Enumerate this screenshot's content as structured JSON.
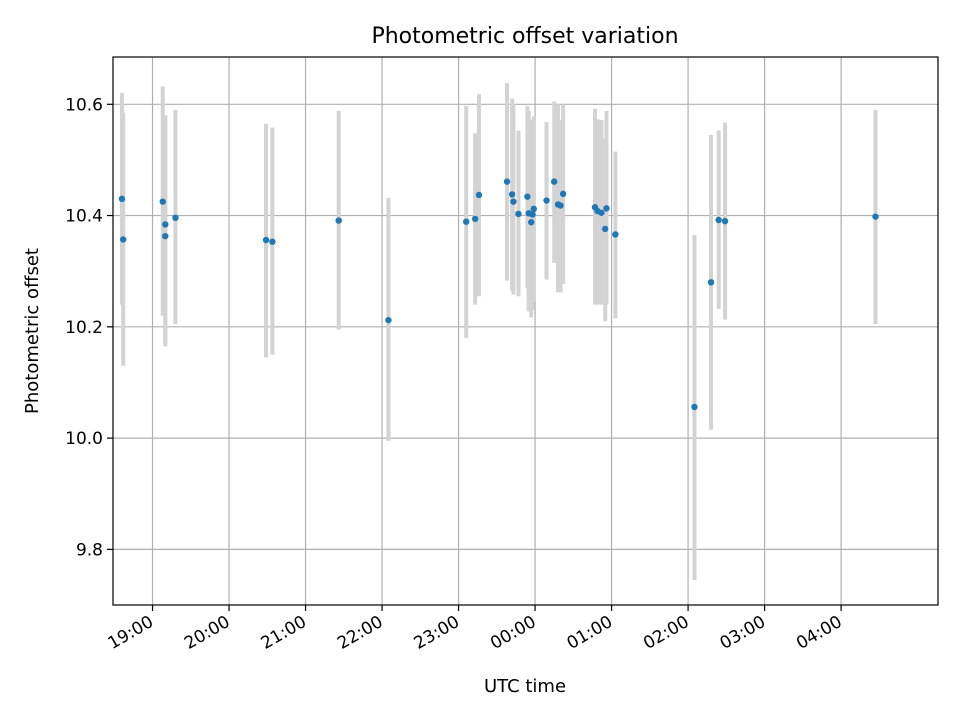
{
  "chart_data": {
    "type": "scatter",
    "title": "Photometric offset variation",
    "xlabel": "UTC time",
    "ylabel": "Photometric offset",
    "grid": true,
    "x_start_label": "18:00",
    "xlim": [
      "18:29",
      "05:16"
    ],
    "ylim": [
      9.7,
      10.685
    ],
    "x_ticks": [
      "19:00",
      "20:00",
      "21:00",
      "22:00",
      "23:00",
      "00:00",
      "01:00",
      "02:00",
      "03:00",
      "04:00"
    ],
    "y_ticks": [
      "9.8",
      "10.0",
      "10.2",
      "10.4",
      "10.6"
    ],
    "y_tick_values": [
      9.8,
      10.0,
      10.2,
      10.4,
      10.6
    ],
    "colors": {
      "point": "#1f77b4",
      "error_bar": "#d3d3d3"
    },
    "points": [
      {
        "x": "18:36",
        "y": 10.43,
        "err_low": 10.24,
        "err_high": 10.62
      },
      {
        "x": "18:37",
        "y": 10.357,
        "err_low": 10.13,
        "err_high": 10.585
      },
      {
        "x": "19:08",
        "y": 10.425,
        "err_low": 10.22,
        "err_high": 10.632
      },
      {
        "x": "19:10",
        "y": 10.384,
        "err_low": 10.165,
        "err_high": 10.58
      },
      {
        "x": "19:10",
        "y": 10.363,
        "err_low": 10.165,
        "err_high": 10.58
      },
      {
        "x": "19:18",
        "y": 10.396,
        "err_low": 10.205,
        "err_high": 10.59
      },
      {
        "x": "20:29",
        "y": 10.356,
        "err_low": 10.145,
        "err_high": 10.565
      },
      {
        "x": "20:34",
        "y": 10.353,
        "err_low": 10.15,
        "err_high": 10.558
      },
      {
        "x": "21:26",
        "y": 10.391,
        "err_low": 10.195,
        "err_high": 10.588
      },
      {
        "x": "22:05",
        "y": 10.212,
        "err_low": 9.995,
        "err_high": 10.432
      },
      {
        "x": "23:06",
        "y": 10.389,
        "err_low": 10.18,
        "err_high": 10.597
      },
      {
        "x": "23:13",
        "y": 10.394,
        "err_low": 10.24,
        "err_high": 10.548
      },
      {
        "x": "23:16",
        "y": 10.437,
        "err_low": 10.255,
        "err_high": 10.618
      },
      {
        "x": "23:38",
        "y": 10.461,
        "err_low": 10.283,
        "err_high": 10.638
      },
      {
        "x": "23:42",
        "y": 10.438,
        "err_low": 10.265,
        "err_high": 10.61
      },
      {
        "x": "23:43",
        "y": 10.425,
        "err_low": 10.258,
        "err_high": 10.6
      },
      {
        "x": "23:47",
        "y": 10.403,
        "err_low": 10.255,
        "err_high": 10.553
      },
      {
        "x": "23:54",
        "y": 10.434,
        "err_low": 10.27,
        "err_high": 10.597
      },
      {
        "x": "23:55",
        "y": 10.404,
        "err_low": 10.228,
        "err_high": 10.588
      },
      {
        "x": "23:57",
        "y": 10.388,
        "err_low": 10.217,
        "err_high": 10.56
      },
      {
        "x": "23:58",
        "y": 10.402,
        "err_low": 10.23,
        "err_high": 10.572
      },
      {
        "x": "23:59",
        "y": 10.412,
        "err_low": 10.245,
        "err_high": 10.578
      },
      {
        "x": "00:09",
        "y": 10.427,
        "err_low": 10.285,
        "err_high": 10.568
      },
      {
        "x": "00:15",
        "y": 10.461,
        "err_low": 10.315,
        "err_high": 10.605
      },
      {
        "x": "00:18",
        "y": 10.42,
        "err_low": 10.262,
        "err_high": 10.6
      },
      {
        "x": "00:20",
        "y": 10.418,
        "err_low": 10.262,
        "err_high": 10.572
      },
      {
        "x": "00:22",
        "y": 10.439,
        "err_low": 10.277,
        "err_high": 10.6
      },
      {
        "x": "00:47",
        "y": 10.415,
        "err_low": 10.24,
        "err_high": 10.592
      },
      {
        "x": "00:49",
        "y": 10.408,
        "err_low": 10.24,
        "err_high": 10.573
      },
      {
        "x": "00:52",
        "y": 10.405,
        "err_low": 10.24,
        "err_high": 10.572
      },
      {
        "x": "00:55",
        "y": 10.376,
        "err_low": 10.21,
        "err_high": 10.54
      },
      {
        "x": "00:56",
        "y": 10.413,
        "err_low": 10.24,
        "err_high": 10.588
      },
      {
        "x": "01:03",
        "y": 10.366,
        "err_low": 10.215,
        "err_high": 10.515
      },
      {
        "x": "02:05",
        "y": 10.056,
        "err_low": 9.745,
        "err_high": 10.365
      },
      {
        "x": "02:18",
        "y": 10.28,
        "err_low": 10.015,
        "err_high": 10.545
      },
      {
        "x": "02:24",
        "y": 10.392,
        "err_low": 10.232,
        "err_high": 10.553
      },
      {
        "x": "02:29",
        "y": 10.39,
        "err_low": 10.213,
        "err_high": 10.567
      },
      {
        "x": "04:27",
        "y": 10.398,
        "err_low": 10.205,
        "err_high": 10.59
      }
    ]
  }
}
